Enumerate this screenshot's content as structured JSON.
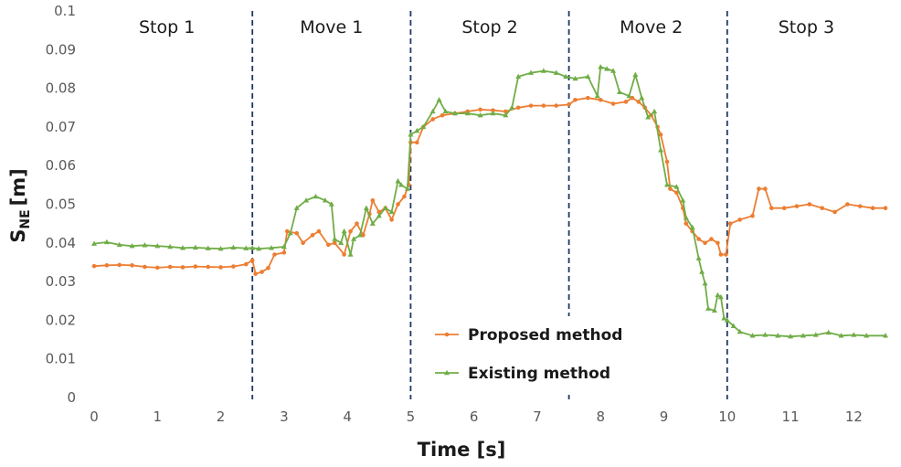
{
  "chart_data": {
    "type": "line",
    "xlabel": "Time [s]",
    "ylabel_main": "S",
    "ylabel_sub": "NE",
    "ylabel_unit": "[m]",
    "xlim": [
      0,
      12.5
    ],
    "ylim": [
      0,
      0.1
    ],
    "x_ticks": [
      "0",
      "1",
      "2",
      "3",
      "4",
      "5",
      "6",
      "7",
      "8",
      "9",
      "10",
      "11",
      "12"
    ],
    "y_ticks": [
      "0",
      "0.01",
      "0.02",
      "0.03",
      "0.04",
      "0.05",
      "0.06",
      "0.07",
      "0.08",
      "0.09",
      "0.1"
    ],
    "grid": false,
    "legend_position": "bottom-center",
    "phase_boundaries": [
      2.5,
      5,
      7.5,
      10
    ],
    "phases": [
      {
        "label": "Stop 1",
        "x": 1.15
      },
      {
        "label": "Move 1",
        "x": 3.75
      },
      {
        "label": "Stop 2",
        "x": 6.25
      },
      {
        "label": "Move 2",
        "x": 8.8
      },
      {
        "label": "Stop 3",
        "x": 11.25
      }
    ],
    "series": [
      {
        "name": "Proposed method",
        "color": "#ED7D31",
        "marker": "circle",
        "points": [
          [
            0,
            0.034
          ],
          [
            0.2,
            0.0342
          ],
          [
            0.4,
            0.0343
          ],
          [
            0.6,
            0.0342
          ],
          [
            0.8,
            0.0338
          ],
          [
            1.0,
            0.0336
          ],
          [
            1.2,
            0.0338
          ],
          [
            1.4,
            0.0337
          ],
          [
            1.6,
            0.0339
          ],
          [
            1.8,
            0.0338
          ],
          [
            2.0,
            0.0337
          ],
          [
            2.2,
            0.0339
          ],
          [
            2.4,
            0.0345
          ],
          [
            2.5,
            0.0355
          ],
          [
            2.55,
            0.032
          ],
          [
            2.65,
            0.0325
          ],
          [
            2.75,
            0.0335
          ],
          [
            2.85,
            0.037
          ],
          [
            3.0,
            0.0375
          ],
          [
            3.05,
            0.043
          ],
          [
            3.2,
            0.0425
          ],
          [
            3.3,
            0.04
          ],
          [
            3.45,
            0.042
          ],
          [
            3.55,
            0.043
          ],
          [
            3.7,
            0.0395
          ],
          [
            3.8,
            0.04
          ],
          [
            3.95,
            0.037
          ],
          [
            4.05,
            0.043
          ],
          [
            4.15,
            0.045
          ],
          [
            4.25,
            0.042
          ],
          [
            4.35,
            0.0475
          ],
          [
            4.4,
            0.051
          ],
          [
            4.5,
            0.048
          ],
          [
            4.6,
            0.049
          ],
          [
            4.7,
            0.046
          ],
          [
            4.8,
            0.05
          ],
          [
            4.9,
            0.052
          ],
          [
            4.97,
            0.055
          ],
          [
            5.0,
            0.066
          ],
          [
            5.1,
            0.066
          ],
          [
            5.2,
            0.07
          ],
          [
            5.35,
            0.072
          ],
          [
            5.5,
            0.073
          ],
          [
            5.7,
            0.0735
          ],
          [
            5.9,
            0.074
          ],
          [
            6.1,
            0.0745
          ],
          [
            6.3,
            0.0743
          ],
          [
            6.5,
            0.074
          ],
          [
            6.7,
            0.075
          ],
          [
            6.9,
            0.0755
          ],
          [
            7.1,
            0.0755
          ],
          [
            7.3,
            0.0755
          ],
          [
            7.5,
            0.0758
          ],
          [
            7.6,
            0.077
          ],
          [
            7.8,
            0.0775
          ],
          [
            8.0,
            0.077
          ],
          [
            8.2,
            0.076
          ],
          [
            8.4,
            0.0765
          ],
          [
            8.5,
            0.0775
          ],
          [
            8.6,
            0.0765
          ],
          [
            8.7,
            0.075
          ],
          [
            8.8,
            0.073
          ],
          [
            8.9,
            0.07
          ],
          [
            8.95,
            0.068
          ],
          [
            9.05,
            0.061
          ],
          [
            9.1,
            0.054
          ],
          [
            9.2,
            0.053
          ],
          [
            9.3,
            0.049
          ],
          [
            9.35,
            0.045
          ],
          [
            9.45,
            0.043
          ],
          [
            9.55,
            0.041
          ],
          [
            9.65,
            0.04
          ],
          [
            9.75,
            0.041
          ],
          [
            9.85,
            0.04
          ],
          [
            9.9,
            0.037
          ],
          [
            9.98,
            0.037
          ],
          [
            10.05,
            0.045
          ],
          [
            10.2,
            0.046
          ],
          [
            10.4,
            0.047
          ],
          [
            10.5,
            0.054
          ],
          [
            10.6,
            0.054
          ],
          [
            10.7,
            0.049
          ],
          [
            10.9,
            0.049
          ],
          [
            11.1,
            0.0495
          ],
          [
            11.3,
            0.05
          ],
          [
            11.5,
            0.049
          ],
          [
            11.7,
            0.048
          ],
          [
            11.9,
            0.05
          ],
          [
            12.1,
            0.0495
          ],
          [
            12.3,
            0.049
          ],
          [
            12.5,
            0.049
          ]
        ]
      },
      {
        "name": "Existing method",
        "color": "#70AD47",
        "marker": "triangle",
        "points": [
          [
            0,
            0.0398
          ],
          [
            0.2,
            0.0402
          ],
          [
            0.4,
            0.0395
          ],
          [
            0.6,
            0.0392
          ],
          [
            0.8,
            0.0394
          ],
          [
            1.0,
            0.0392
          ],
          [
            1.2,
            0.039
          ],
          [
            1.4,
            0.0387
          ],
          [
            1.6,
            0.0388
          ],
          [
            1.8,
            0.0386
          ],
          [
            2.0,
            0.0385
          ],
          [
            2.2,
            0.0388
          ],
          [
            2.4,
            0.0386
          ],
          [
            2.5,
            0.0387
          ],
          [
            2.6,
            0.0385
          ],
          [
            2.8,
            0.0387
          ],
          [
            3.0,
            0.039
          ],
          [
            3.1,
            0.0425
          ],
          [
            3.2,
            0.049
          ],
          [
            3.35,
            0.051
          ],
          [
            3.5,
            0.052
          ],
          [
            3.65,
            0.051
          ],
          [
            3.75,
            0.05
          ],
          [
            3.8,
            0.041
          ],
          [
            3.9,
            0.04
          ],
          [
            3.95,
            0.043
          ],
          [
            4.05,
            0.037
          ],
          [
            4.1,
            0.041
          ],
          [
            4.2,
            0.042
          ],
          [
            4.3,
            0.049
          ],
          [
            4.4,
            0.045
          ],
          [
            4.5,
            0.047
          ],
          [
            4.6,
            0.049
          ],
          [
            4.7,
            0.048
          ],
          [
            4.8,
            0.056
          ],
          [
            4.85,
            0.055
          ],
          [
            4.95,
            0.054
          ],
          [
            5.0,
            0.068
          ],
          [
            5.1,
            0.069
          ],
          [
            5.2,
            0.07
          ],
          [
            5.35,
            0.074
          ],
          [
            5.45,
            0.077
          ],
          [
            5.55,
            0.074
          ],
          [
            5.7,
            0.0735
          ],
          [
            5.9,
            0.0735
          ],
          [
            6.1,
            0.073
          ],
          [
            6.3,
            0.0735
          ],
          [
            6.5,
            0.073
          ],
          [
            6.6,
            0.075
          ],
          [
            6.7,
            0.083
          ],
          [
            6.9,
            0.084
          ],
          [
            7.1,
            0.0845
          ],
          [
            7.3,
            0.084
          ],
          [
            7.45,
            0.083
          ],
          [
            7.6,
            0.0825
          ],
          [
            7.8,
            0.083
          ],
          [
            7.95,
            0.078
          ],
          [
            8.0,
            0.0855
          ],
          [
            8.1,
            0.085
          ],
          [
            8.2,
            0.0845
          ],
          [
            8.3,
            0.079
          ],
          [
            8.45,
            0.078
          ],
          [
            8.55,
            0.0835
          ],
          [
            8.65,
            0.0775
          ],
          [
            8.75,
            0.0725
          ],
          [
            8.85,
            0.074
          ],
          [
            8.95,
            0.064
          ],
          [
            9.05,
            0.055
          ],
          [
            9.2,
            0.0545
          ],
          [
            9.3,
            0.051
          ],
          [
            9.35,
            0.0465
          ],
          [
            9.45,
            0.044
          ],
          [
            9.55,
            0.036
          ],
          [
            9.6,
            0.0325
          ],
          [
            9.65,
            0.0295
          ],
          [
            9.7,
            0.023
          ],
          [
            9.8,
            0.0225
          ],
          [
            9.85,
            0.0265
          ],
          [
            9.9,
            0.026
          ],
          [
            9.95,
            0.0205
          ],
          [
            10.0,
            0.02
          ],
          [
            10.1,
            0.0185
          ],
          [
            10.2,
            0.017
          ],
          [
            10.4,
            0.016
          ],
          [
            10.6,
            0.0162
          ],
          [
            10.8,
            0.016
          ],
          [
            11.0,
            0.0158
          ],
          [
            11.2,
            0.016
          ],
          [
            11.4,
            0.0162
          ],
          [
            11.6,
            0.0168
          ],
          [
            11.8,
            0.016
          ],
          [
            12.0,
            0.0162
          ],
          [
            12.2,
            0.016
          ],
          [
            12.5,
            0.016
          ]
        ]
      }
    ]
  }
}
